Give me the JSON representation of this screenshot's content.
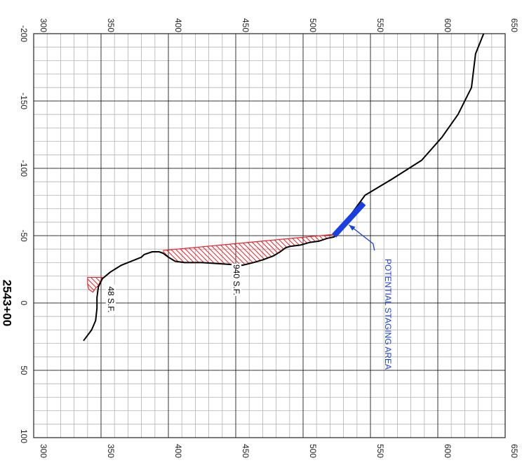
{
  "station": "2543+00",
  "axes": {
    "elevation_ticks": [
      "300",
      "350",
      "400",
      "450",
      "500",
      "550",
      "600",
      "650"
    ],
    "offset_ticks": [
      "-200",
      "-150",
      "-100",
      "-50",
      "0",
      "50",
      "100"
    ],
    "elevation_range": [
      300,
      650
    ],
    "offset_range": [
      -200,
      100
    ],
    "minor_grid_elevation": 10,
    "minor_grid_offset": 10,
    "major_grid_elevation": 50,
    "major_grid_offset": 50
  },
  "labels": {
    "fill_area_large": "940 S.F.",
    "fill_area_small": "48 S.F.",
    "staging_area": "POTENTIAL STAGING AREA"
  },
  "colors": {
    "ground_line": "#000000",
    "hatch": "#e8202a",
    "staging": "#1a3fe0",
    "major_grid": "#333333",
    "minor_grid": "#b4b4b4"
  },
  "ground_profile": [
    [
      337,
      28
    ],
    [
      343,
      20
    ],
    [
      346,
      13
    ],
    [
      347,
      4
    ],
    [
      347,
      -4
    ],
    [
      348,
      -12
    ],
    [
      351,
      -18
    ],
    [
      357,
      -23
    ],
    [
      365,
      -28
    ],
    [
      375,
      -32
    ],
    [
      380,
      -34
    ],
    [
      382,
      -36
    ],
    [
      388,
      -38
    ],
    [
      393,
      -38
    ],
    [
      396,
      -37
    ],
    [
      400,
      -34
    ],
    [
      405,
      -31
    ],
    [
      412,
      -30
    ],
    [
      425,
      -30
    ],
    [
      440,
      -29
    ],
    [
      455,
      -28
    ],
    [
      463,
      -30
    ],
    [
      470,
      -32
    ],
    [
      478,
      -35
    ],
    [
      483,
      -38
    ],
    [
      487,
      -41
    ],
    [
      490,
      -42
    ],
    [
      498,
      -43
    ],
    [
      505,
      -45
    ],
    [
      512,
      -46
    ],
    [
      518,
      -48
    ],
    [
      523,
      -49
    ],
    [
      535,
      -65
    ],
    [
      546,
      -80
    ],
    [
      566,
      -92
    ],
    [
      588,
      -106
    ],
    [
      603,
      -123
    ],
    [
      615,
      -140
    ],
    [
      625,
      -160
    ],
    [
      628,
      -185
    ],
    [
      634,
      -200
    ]
  ],
  "fill_large_top": [
    [
      396,
      -39
    ],
    [
      523,
      -51
    ]
  ],
  "fill_large_bottom": [
    [
      396,
      -37
    ],
    [
      400,
      -34
    ],
    [
      405,
      -31
    ],
    [
      412,
      -30
    ],
    [
      425,
      -30
    ],
    [
      440,
      -29
    ],
    [
      455,
      -28
    ],
    [
      463,
      -30
    ],
    [
      470,
      -32
    ],
    [
      478,
      -35
    ],
    [
      483,
      -38
    ],
    [
      487,
      -41
    ],
    [
      490,
      -42
    ],
    [
      498,
      -43
    ],
    [
      505,
      -45
    ],
    [
      512,
      -46
    ],
    [
      518,
      -48
    ],
    [
      523,
      -51
    ]
  ],
  "fill_small": [
    [
      340,
      -19
    ],
    [
      351,
      -19
    ],
    [
      348,
      -13
    ],
    [
      346,
      -11
    ],
    [
      344,
      -8
    ],
    [
      341,
      -10
    ],
    [
      340,
      -14
    ]
  ],
  "staging_bar": [
    [
      523,
      -50
    ],
    [
      545,
      -74
    ]
  ],
  "staging_leader": [
    [
      534,
      -58
    ],
    [
      552,
      -44
    ],
    [
      553,
      -39
    ]
  ]
}
